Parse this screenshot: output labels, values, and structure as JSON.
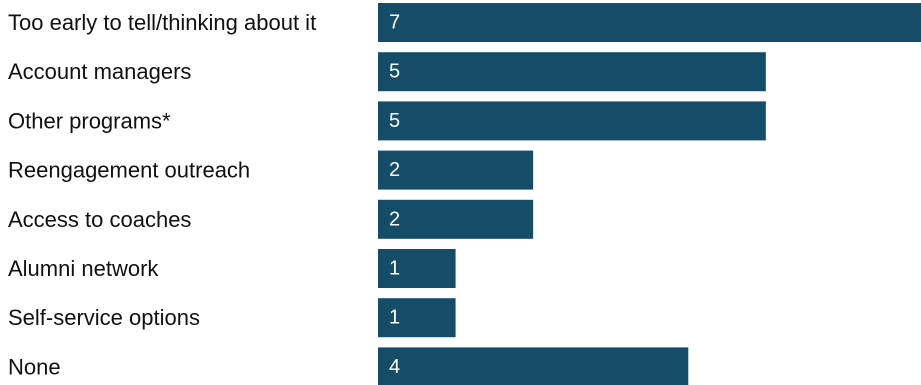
{
  "chart_data": {
    "type": "bar",
    "orientation": "horizontal",
    "title": "",
    "xlabel": "",
    "ylabel": "",
    "categories": [
      "Too early to tell/thinking about it",
      "Account managers",
      "Other programs*",
      "Reengagement outreach",
      "Access to coaches",
      "Alumni network",
      "Self-service options",
      "None"
    ],
    "values": [
      7,
      5,
      5,
      2,
      2,
      1,
      1,
      4
    ],
    "xlim": [
      0,
      7
    ],
    "grid": false,
    "legend": "none",
    "bar_color": "#154c68",
    "value_label_color": "#ffffff",
    "category_label_color": "#111111"
  }
}
